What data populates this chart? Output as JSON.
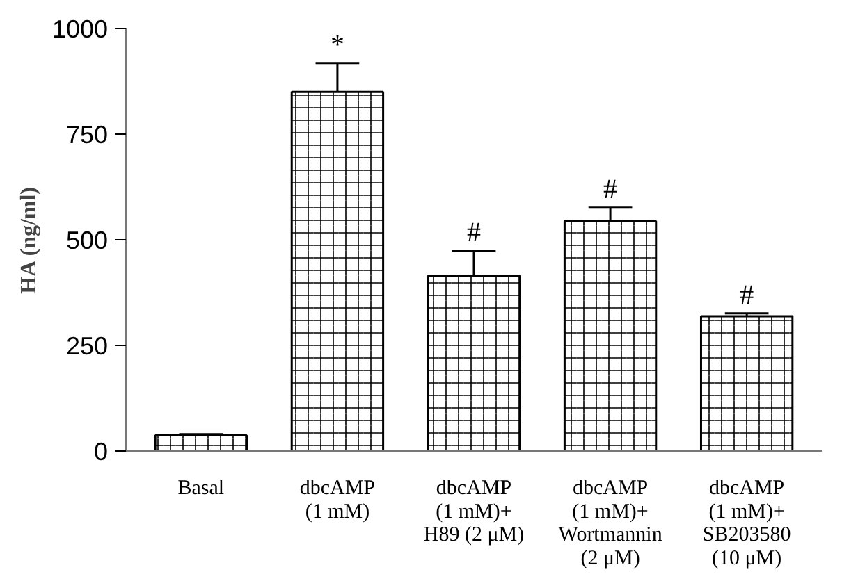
{
  "chart_data": {
    "type": "bar",
    "ylabel": "HA (ng/ml)",
    "categories": [
      "Basal",
      "dbcAMP\n(1 mM)",
      "dbcAMP\n(1 mM)+\nH89 (2 μM)",
      "dbcAMP\n(1 mM)+\nWortmannin\n(2 μM)",
      "dbcAMP\n(1 mM)+\nSB203580\n(10 μM)"
    ],
    "values": [
      37,
      850,
      415,
      544,
      319
    ],
    "errors": [
      [
        37,
        40
      ],
      [
        850,
        918
      ],
      [
        415,
        473
      ],
      [
        544,
        576
      ],
      [
        319,
        326
      ]
    ],
    "color": "#000000",
    "ylim": [
      0,
      1000
    ],
    "yticks": [
      0,
      250,
      500,
      750,
      1000
    ],
    "grid": false,
    "annotations": [
      {
        "text": "*",
        "x": "dbcAMP\n(1 mM)",
        "y": 850
      },
      {
        "text": "#",
        "x": "dbcAMP\n(1 mM)+\nH89 (2 μM)",
        "y": 415
      },
      {
        "text": "#",
        "x": "dbcAMP\n(1 mM)+\nWortmannin\n(2 μM)",
        "y": 544
      },
      {
        "text": "#",
        "x": "dbcAMP\n(1 mM)+\nSB203580\n(10 μM)",
        "y": 319
      }
    ]
  }
}
